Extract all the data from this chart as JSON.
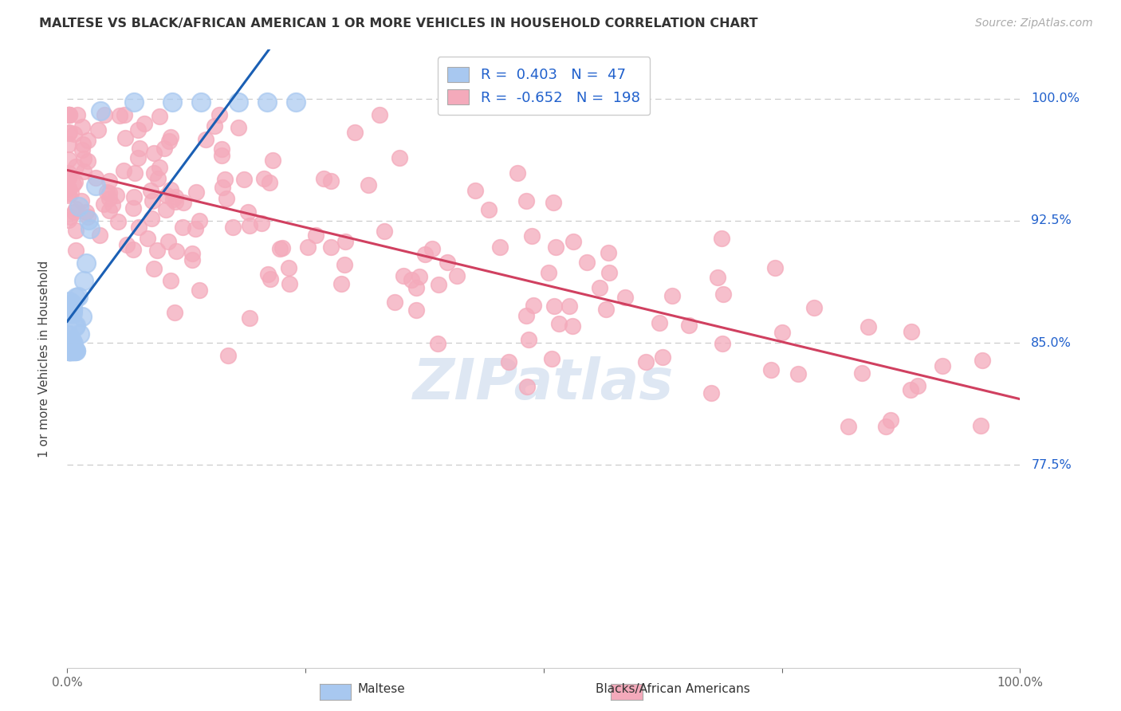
{
  "title": "MALTESE VS BLACK/AFRICAN AMERICAN 1 OR MORE VEHICLES IN HOUSEHOLD CORRELATION CHART",
  "source": "Source: ZipAtlas.com",
  "ylabel": "1 or more Vehicles in Household",
  "ytick_labels": [
    "100.0%",
    "92.5%",
    "85.0%",
    "77.5%"
  ],
  "ytick_values": [
    1.0,
    0.925,
    0.85,
    0.775
  ],
  "legend_r_maltese": "0.403",
  "legend_n_maltese": "47",
  "legend_r_black": "-0.652",
  "legend_n_black": "198",
  "color_maltese": "#a8c8f0",
  "color_black": "#f4aabb",
  "color_maltese_line": "#1a5fb4",
  "color_black_line": "#d04060",
  "color_legend_text": "#2060cc",
  "color_source": "#b0b0b0",
  "color_grid": "#cccccc",
  "color_watermark": "#c8d8ec",
  "xlim": [
    0.0,
    1.0
  ],
  "ylim": [
    0.65,
    1.03
  ],
  "background_color": "#ffffff"
}
